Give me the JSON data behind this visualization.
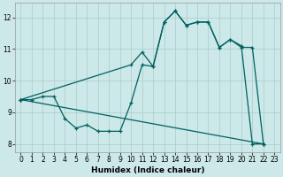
{
  "xlabel": "Humidex (Indice chaleur)",
  "bg_color": "#cce8e8",
  "grid_color": "#aacccc",
  "line_color": "#006060",
  "xlim": [
    -0.5,
    23.5
  ],
  "ylim": [
    7.75,
    12.45
  ],
  "xticks": [
    0,
    1,
    2,
    3,
    4,
    5,
    6,
    7,
    8,
    9,
    10,
    11,
    12,
    13,
    14,
    15,
    16,
    17,
    18,
    19,
    20,
    21,
    22,
    23
  ],
  "yticks": [
    8,
    9,
    10,
    11,
    12
  ],
  "line1_x": [
    0,
    1,
    2,
    3,
    4,
    5,
    6,
    7,
    8,
    9,
    10,
    11,
    12,
    13,
    14,
    15,
    16,
    17,
    18,
    19,
    20,
    21,
    22
  ],
  "line1_y": [
    9.4,
    9.4,
    9.5,
    9.5,
    8.8,
    8.5,
    8.6,
    8.4,
    8.4,
    8.4,
    9.3,
    10.5,
    10.45,
    11.85,
    12.2,
    11.75,
    11.85,
    11.85,
    11.05,
    11.3,
    11.1,
    8.0,
    8.0
  ],
  "line2_x": [
    0,
    22
  ],
  "line2_y": [
    9.4,
    8.0
  ],
  "line3_x": [
    0,
    10,
    11,
    12,
    13,
    14,
    15,
    16,
    17,
    18,
    19,
    20,
    21,
    22
  ],
  "line3_y": [
    9.4,
    10.5,
    10.9,
    10.45,
    11.85,
    12.2,
    11.75,
    11.85,
    11.85,
    11.05,
    11.3,
    11.05,
    11.05,
    8.0
  ]
}
